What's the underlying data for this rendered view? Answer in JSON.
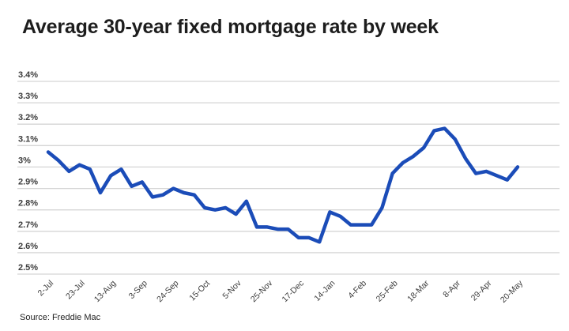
{
  "page": {
    "title": "Average 30-year fixed mortgage rate by week",
    "source": "Source: Freddie Mac"
  },
  "colors": {
    "background": "#ffffff",
    "line": "#1b4cb8",
    "grid": "#d5d5d5",
    "title_text": "#1d1d1d",
    "axis_text": "#3c3c3c",
    "source_text": "#222222"
  },
  "chart_data": {
    "type": "line",
    "title": "Average 30-year fixed mortgage rate by week",
    "xlabel": "",
    "ylabel": "",
    "grid": true,
    "legend": false,
    "ylim": [
      2.5,
      3.4
    ],
    "y_ticks": [
      "3.4%",
      "3.3%",
      "3.2%",
      "3.1%",
      "3%",
      "2.9%",
      "2.8%",
      "2.7%",
      "2.6%",
      "2.5%"
    ],
    "x_tick_labels": [
      "2-Jul",
      "23-Jul",
      "13-Aug",
      "3-Sep",
      "24-Sep",
      "15-Oct",
      "5-Nov",
      "25-Nov",
      "17-Dec",
      "14-Jan",
      "4-Feb",
      "25-Feb",
      "18-Mar",
      "8-Apr",
      "29-Apr",
      "20-May"
    ],
    "label_every": 3,
    "values": [
      3.07,
      3.03,
      2.98,
      3.01,
      2.99,
      2.88,
      2.96,
      2.99,
      2.91,
      2.93,
      2.86,
      2.87,
      2.9,
      2.88,
      2.87,
      2.81,
      2.8,
      2.81,
      2.78,
      2.84,
      2.72,
      2.72,
      2.71,
      2.71,
      2.67,
      2.67,
      2.65,
      2.79,
      2.77,
      2.73,
      2.73,
      2.73,
      2.81,
      2.97,
      3.02,
      3.05,
      3.09,
      3.17,
      3.18,
      3.13,
      3.04,
      2.97,
      2.98,
      2.96,
      2.94,
      3.0
    ]
  }
}
